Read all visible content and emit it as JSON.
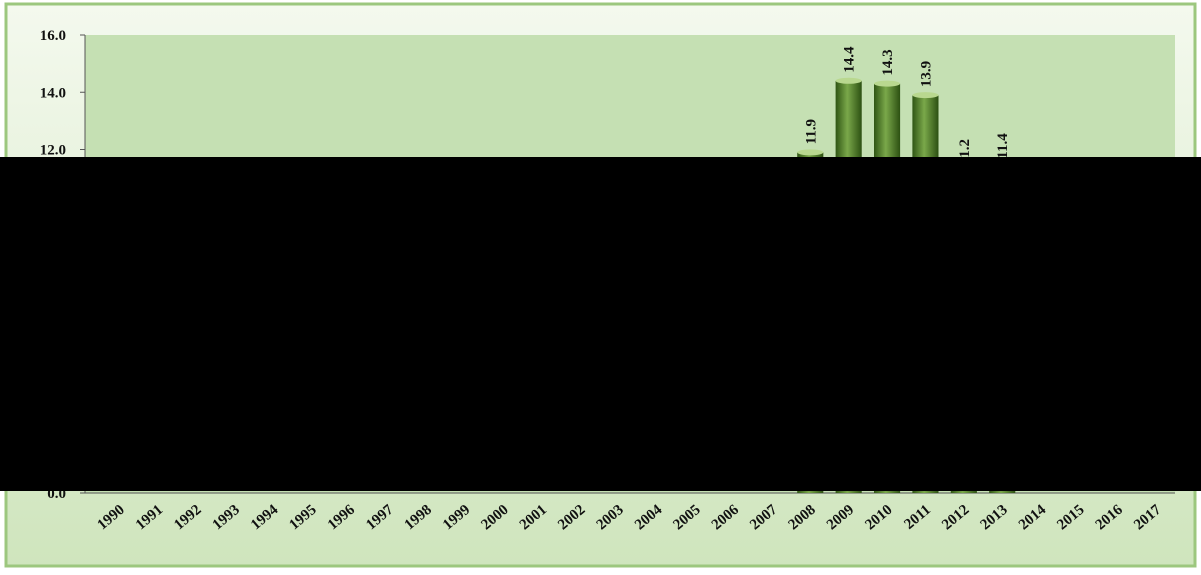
{
  "chart_data": {
    "type": "bar",
    "categories": [
      "1990",
      "1991",
      "1992",
      "1993",
      "1994",
      "1995",
      "1996",
      "1997",
      "1998",
      "1999",
      "2000",
      "2001",
      "2002",
      "2003",
      "2004",
      "2005",
      "2006",
      "2007",
      "2008",
      "2009",
      "2010",
      "2011",
      "2012",
      "2013",
      "2014",
      "2015",
      "2016",
      "2017"
    ],
    "values": [
      null,
      null,
      null,
      null,
      null,
      null,
      null,
      null,
      null,
      null,
      null,
      null,
      null,
      null,
      null,
      null,
      null,
      null,
      11.9,
      14.4,
      14.3,
      13.9,
      11.2,
      11.4,
      null,
      null,
      null,
      null
    ],
    "color": "#4e7d2a",
    "ylim": [
      0,
      16
    ],
    "yticks": [
      {
        "value": 0,
        "label": "0.0"
      },
      {
        "value": 12,
        "label": "12.0"
      },
      {
        "value": 14,
        "label": "14.0"
      },
      {
        "value": 16,
        "label": "16.0"
      }
    ]
  }
}
